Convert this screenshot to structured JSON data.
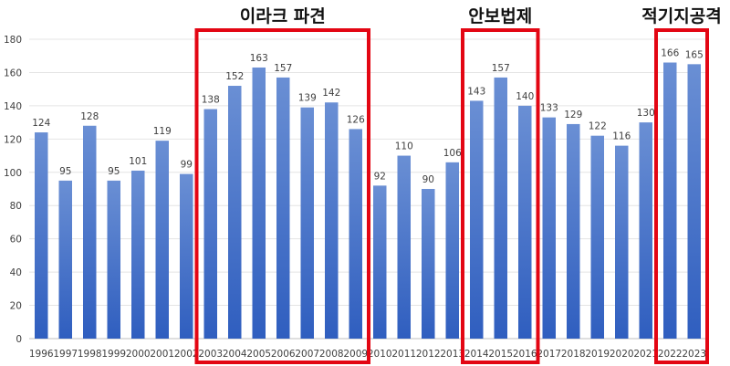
{
  "chart_data": {
    "type": "bar",
    "categories": [
      "1996",
      "1997",
      "1998",
      "1999",
      "2000",
      "2001",
      "2002",
      "2003",
      "2004",
      "2005",
      "2006",
      "2007",
      "2008",
      "2009",
      "2010",
      "2011",
      "2012",
      "2013",
      "2014",
      "2015",
      "2016",
      "2017",
      "2018",
      "2019",
      "2020",
      "2021",
      "2022",
      "2023"
    ],
    "values": [
      124,
      95,
      128,
      95,
      101,
      119,
      99,
      138,
      152,
      163,
      157,
      139,
      142,
      126,
      92,
      110,
      90,
      106,
      143,
      157,
      140,
      133,
      129,
      122,
      116,
      130,
      166,
      165
    ],
    "ylim": [
      0,
      180
    ],
    "yticks": [
      0,
      20,
      40,
      60,
      80,
      100,
      120,
      140,
      160,
      180
    ],
    "grid": true,
    "legend": "none",
    "bar_color_top": "#6a8fd4",
    "bar_color_bottom": "#2f5ebf",
    "annotations": [
      {
        "text": "이라크 파견",
        "from": "2003",
        "to": "2009",
        "color": "#e30613"
      },
      {
        "text": "안보법제",
        "from": "2014",
        "to": "2016",
        "color": "#e30613"
      },
      {
        "text": "적기지공격",
        "from": "2022",
        "to": "2023",
        "color": "#e30613"
      }
    ]
  }
}
